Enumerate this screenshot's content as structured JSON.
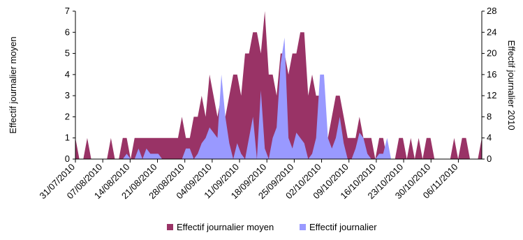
{
  "chart_data": {
    "type": "area",
    "ylabel_left": "Effectif journalier moyen",
    "ylabel_right": "Effectif journalier 2010",
    "ylim_left": [
      0,
      7
    ],
    "ylim_right": [
      0,
      28
    ],
    "yticks_left": [
      "0",
      "1",
      "2",
      "3",
      "4",
      "5",
      "6",
      "7"
    ],
    "yticks_right": [
      "0",
      "4",
      "8",
      "12",
      "16",
      "20",
      "24",
      "28"
    ],
    "x_tick_labels": [
      "31/07/2010",
      "07/08/2010",
      "14/08/2010",
      "21/08/2010",
      "28/08/2010",
      "04/09/2010",
      "11/09/2010",
      "18/09/2010",
      "25/09/2010",
      "02/10/2010",
      "09/10/2010",
      "16/10/2010",
      "23/10/2010",
      "30/10/2010",
      "06/11/2010"
    ],
    "x_start": "2010-07-31",
    "x_end": "2010-11-12",
    "grid": false,
    "legend_position": "bottom",
    "series": [
      {
        "name": "Effectif journalier moyen",
        "color": "#993366",
        "axis": "left",
        "values": [
          1,
          0,
          0,
          1,
          0,
          0,
          0,
          0,
          0,
          1,
          0,
          0,
          1,
          1,
          0,
          1,
          1,
          1,
          1,
          1,
          1,
          1,
          1,
          1,
          1,
          1,
          1,
          2,
          1,
          1,
          2,
          2,
          3,
          2,
          4,
          3,
          2,
          3,
          2,
          3,
          4,
          4,
          3,
          5,
          5,
          6,
          6,
          5,
          7,
          4,
          4,
          3,
          5,
          5,
          4,
          5,
          5,
          6,
          6,
          3,
          4,
          3,
          3,
          2,
          1,
          2,
          3,
          3,
          2,
          1,
          1,
          1,
          2,
          1,
          1,
          1,
          0,
          1,
          1,
          0,
          0,
          0,
          1,
          1,
          0,
          1,
          0,
          1,
          0,
          1,
          1,
          0,
          0,
          0,
          0,
          0,
          1,
          0,
          1,
          1,
          0,
          0,
          0,
          1
        ]
      },
      {
        "name": "Effectif journalier",
        "color": "#9999ff",
        "axis": "right",
        "values": [
          0,
          0,
          0,
          0,
          0,
          0,
          0,
          0,
          0,
          0,
          0,
          0,
          0,
          1,
          0,
          0,
          2,
          0,
          2,
          1,
          1,
          1,
          0,
          0,
          0,
          0,
          0,
          0,
          2,
          2,
          0,
          1,
          3,
          4,
          6,
          5,
          4,
          16,
          8,
          3,
          0,
          3,
          1,
          0,
          4,
          8,
          0,
          13,
          2,
          0,
          4,
          6,
          18,
          23,
          4,
          2,
          5,
          4,
          3,
          0,
          1,
          4,
          16,
          16,
          4,
          2,
          4,
          8,
          3,
          0,
          0,
          2,
          5,
          4,
          1,
          0,
          0,
          1,
          1,
          4,
          0,
          0,
          0,
          0,
          0,
          0,
          0,
          0,
          0,
          0,
          0,
          0,
          0,
          0,
          0,
          0,
          0,
          0,
          0,
          0,
          0,
          0,
          0,
          0
        ]
      }
    ]
  }
}
